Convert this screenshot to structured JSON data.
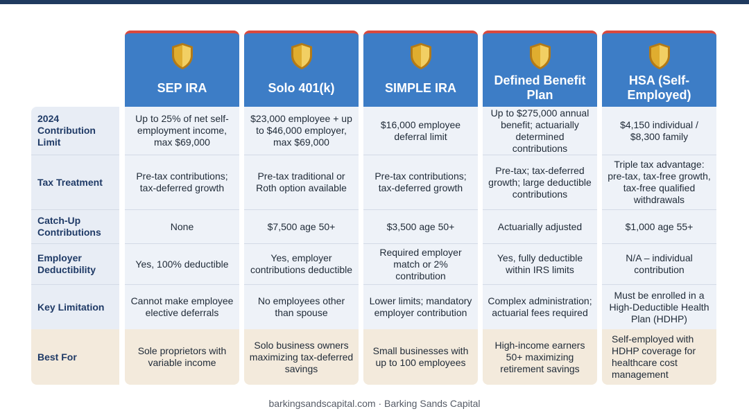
{
  "columns": [
    {
      "title": "SEP IRA"
    },
    {
      "title": "Solo 401(k)"
    },
    {
      "title": "SIMPLE IRA"
    },
    {
      "title": "Defined Benefit Plan"
    },
    {
      "title": "HSA (Self-Employed)"
    }
  ],
  "rows": [
    {
      "label": "2024 Contribution Limit",
      "cells": [
        "Up to 25% of net self-employment income, max $69,000",
        "$23,000 employee + up to $46,000 employer, max $69,000",
        "$16,000 employee deferral limit",
        "Up to $275,000 annual benefit; actuarially determined contributions",
        "$4,150 individual / $8,300 family"
      ]
    },
    {
      "label": "Tax Treatment",
      "cells": [
        "Pre-tax contributions; tax-deferred growth",
        "Pre-tax traditional or Roth option available",
        "Pre-tax contributions; tax-deferred growth",
        "Pre-tax; tax-deferred growth; large deductible contributions",
        "Triple tax advantage: pre-tax, tax-free growth, tax-free qualified withdrawals"
      ]
    },
    {
      "label": "Catch-Up Contributions",
      "cells": [
        "None",
        "$7,500 age 50+",
        "$3,500 age 50+",
        "Actuarially adjusted",
        "$1,000 age 55+"
      ]
    },
    {
      "label": "Employer Deductibility",
      "cells": [
        "Yes, 100% deductible",
        "Yes, employer contributions deductible",
        "Required employer match or 2% contribution",
        "Yes, fully deductible within IRS limits",
        "N/A – individual contribution"
      ]
    },
    {
      "label": "Key Limitation",
      "cells": [
        "Cannot make employee elective deferrals",
        "No employees other than spouse",
        "Lower limits; mandatory employer contribution",
        "Complex administration; actuarial fees required",
        "Must be enrolled in a High-Deductible Health Plan (HDHP)"
      ]
    },
    {
      "label": "Best For",
      "cells": [
        "Sole proprietors with variable income",
        "Solo business owners maximizing tax-deferred savings",
        "Small businesses with up to 100 employees",
        "High-income earners 50+ maximizing retirement savings",
        "Self-employed with HDHP coverage for healthcare cost management"
      ]
    }
  ],
  "footer": "barkingsandscapital.com · Barking Sands Capital",
  "colors": {
    "header_blue": "#3d7dc6",
    "header_accent": "#d9493e",
    "label_text": "#1f3a66",
    "best_for_bg": "#f3eadc",
    "shield_gold": "#e0ad2f"
  },
  "icons": {
    "column_header": "shield-icon"
  }
}
